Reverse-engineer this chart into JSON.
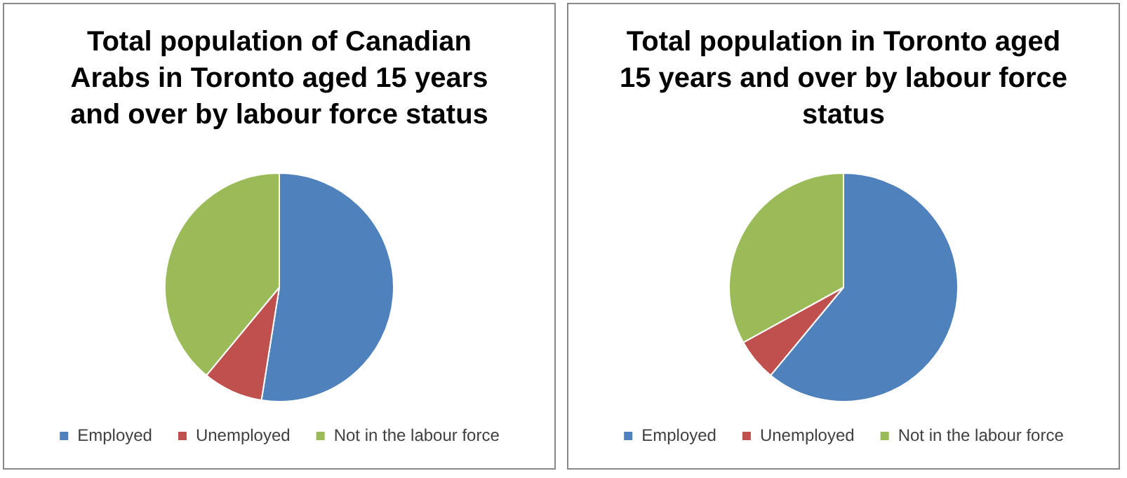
{
  "chart_data": [
    {
      "type": "pie",
      "title": "Total population of Canadian Arabs in Toronto aged 15 years and over by labour force status",
      "categories": [
        "Employed",
        "Unemployed",
        "Not in the labour force"
      ],
      "values": [
        52.5,
        8.5,
        39
      ],
      "colors": [
        "#4f81bd",
        "#c0504d",
        "#9bbb59"
      ],
      "legend": "bottom"
    },
    {
      "type": "pie",
      "title": "Total population in Toronto aged 15 years and over by labour force status",
      "categories": [
        "Employed",
        "Unemployed",
        "Not in the labour force"
      ],
      "values": [
        61,
        6,
        33
      ],
      "colors": [
        "#4f81bd",
        "#c0504d",
        "#9bbb59"
      ],
      "legend": "bottom"
    }
  ]
}
